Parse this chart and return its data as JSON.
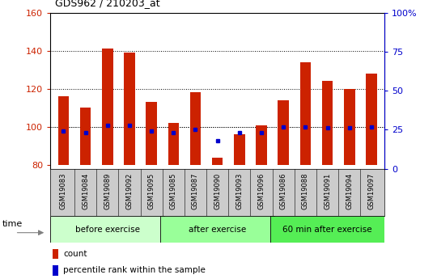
{
  "title": "GDS962 / 210203_at",
  "samples": [
    "GSM19083",
    "GSM19084",
    "GSM19089",
    "GSM19092",
    "GSM19095",
    "GSM19085",
    "GSM19087",
    "GSM19090",
    "GSM19093",
    "GSM19096",
    "GSM19086",
    "GSM19088",
    "GSM19091",
    "GSM19094",
    "GSM19097"
  ],
  "count_values": [
    116,
    110,
    141,
    139,
    113,
    102,
    118,
    84,
    96,
    101,
    114,
    134,
    124,
    120,
    128
  ],
  "percentile_values": [
    24,
    23,
    28,
    28,
    24,
    23,
    25,
    18,
    23,
    23,
    27,
    27,
    26,
    26,
    27
  ],
  "groups": [
    {
      "label": "before exercise",
      "start": 0,
      "end": 5,
      "color": "#ccffcc"
    },
    {
      "label": "after exercise",
      "start": 5,
      "end": 10,
      "color": "#99ff99"
    },
    {
      "label": "60 min after exercise",
      "start": 10,
      "end": 15,
      "color": "#55ee55"
    }
  ],
  "ylim_left": [
    78,
    160
  ],
  "ylim_right": [
    0,
    100
  ],
  "yticks_left": [
    80,
    100,
    120,
    140,
    160
  ],
  "yticks_right": [
    0,
    25,
    50,
    75,
    100
  ],
  "ytick_labels_right": [
    "0",
    "25",
    "50",
    "75",
    "100%"
  ],
  "bar_color": "#cc2200",
  "dot_color": "#0000cc",
  "bar_bottom": 80,
  "grid_lines": [
    100,
    120,
    140
  ],
  "label_bg_color": "#cccccc",
  "fig_width": 5.4,
  "fig_height": 3.45,
  "dpi": 100
}
